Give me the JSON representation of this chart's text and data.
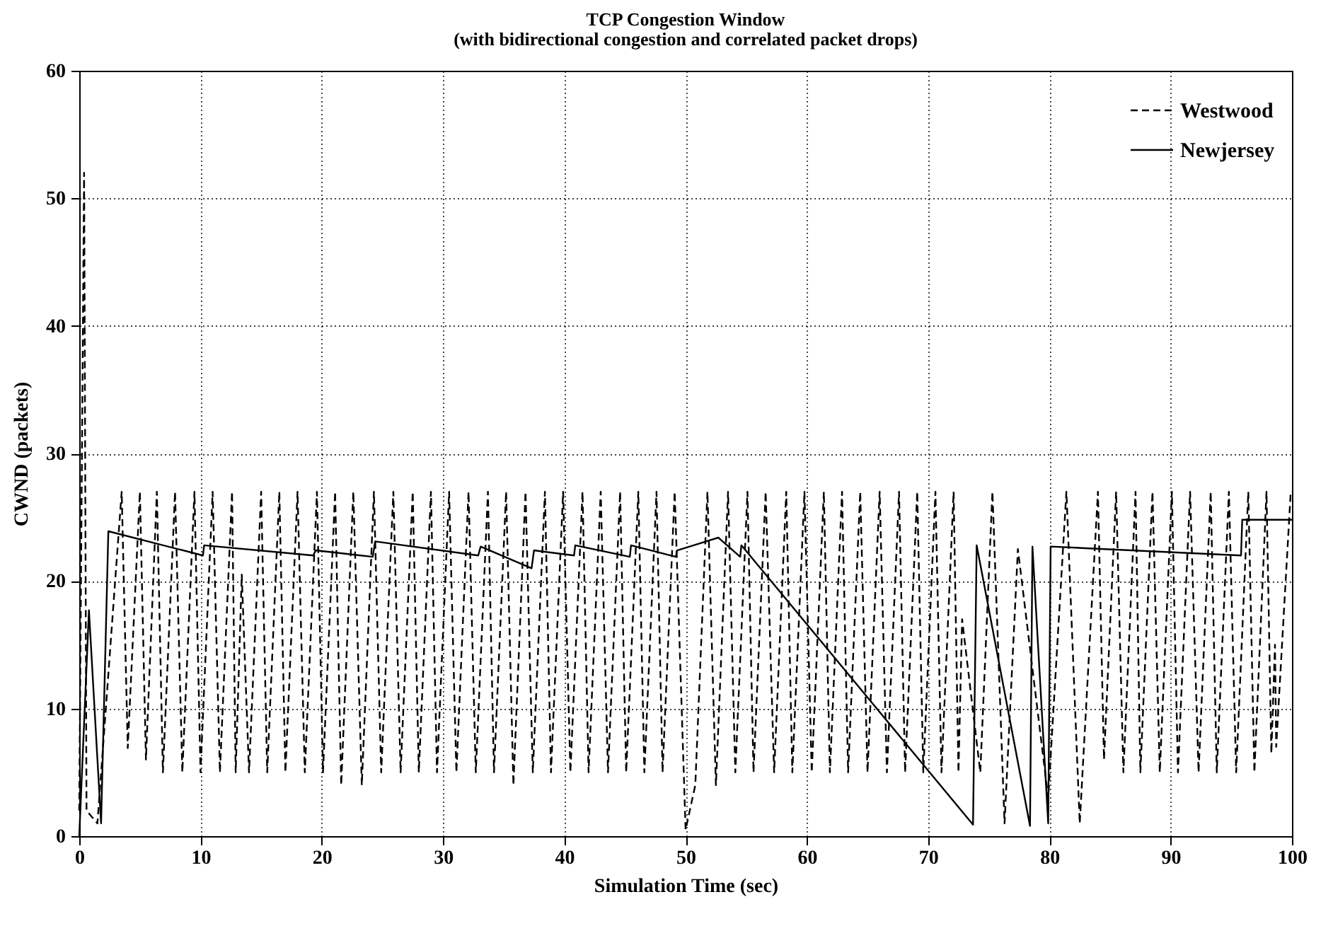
{
  "chart_data": {
    "type": "line",
    "title": "TCP Congestion Window",
    "subtitle": "(with bidirectional congestion and correlated packet drops)",
    "xlabel": "Simulation Time (sec)",
    "ylabel": "CWND (packets)",
    "xlim": [
      0,
      100
    ],
    "xticks": [
      0,
      10,
      20,
      30,
      40,
      50,
      60,
      70,
      80,
      90,
      100
    ],
    "ylim": [
      0,
      60
    ],
    "yticks": [
      0,
      10,
      20,
      30,
      40,
      50,
      60
    ],
    "grid": true,
    "legend": "top right",
    "marker": "none",
    "series": [
      {
        "name": "Westwood",
        "color": "#000000",
        "line_style": "dashed",
        "x": [
          0,
          0.4,
          0.6,
          1.5,
          3.5,
          4.0,
          5.0,
          5.5,
          6.4,
          6.9,
          7.9,
          8.5,
          9.5,
          10.0,
          11.0,
          11.6,
          12.6,
          12.9,
          13.4,
          14.0,
          15.0,
          15.5,
          16.5,
          17.0,
          18.0,
          18.6,
          19.6,
          20.1,
          21.1,
          21.6,
          22.6,
          23.3,
          24.3,
          24.9,
          25.9,
          26.5,
          27.5,
          28.0,
          29.0,
          29.5,
          30.5,
          31.1,
          32.1,
          32.7,
          33.7,
          34.2,
          35.2,
          35.8,
          36.8,
          37.4,
          38.4,
          38.9,
          39.9,
          40.5,
          41.5,
          42.0,
          43.0,
          43.6,
          44.6,
          45.1,
          46.1,
          46.6,
          47.6,
          48.1,
          49.1,
          50.0,
          50.8,
          51.8,
          52.5,
          53.5,
          54.1,
          55.1,
          55.6,
          56.6,
          57.3,
          58.3,
          58.8,
          59.8,
          60.4,
          61.4,
          61.9,
          62.9,
          63.4,
          64.4,
          65.0,
          66.0,
          66.6,
          67.6,
          68.1,
          69.1,
          69.6,
          70.6,
          71.1,
          72.1,
          72.5,
          72.8,
          74.3,
          75.3,
          76.3,
          77.4,
          79.9,
          81.4,
          82.5,
          84.0,
          84.5,
          85.5,
          86.1,
          87.1,
          87.5,
          88.5,
          89.1,
          90.1,
          90.6,
          91.6,
          92.3,
          93.3,
          93.8,
          94.8,
          95.4,
          96.4,
          96.9,
          97.9,
          98.3,
          98.6,
          98.7,
          99.9
        ],
        "values": [
          2,
          52,
          2,
          1,
          27,
          6.9,
          27,
          6,
          27,
          5,
          27,
          5,
          27,
          5,
          27,
          5,
          27,
          5,
          20.5,
          5,
          27,
          5,
          27,
          5,
          27,
          5,
          27,
          5,
          27,
          4,
          27,
          4,
          27,
          5,
          27,
          5,
          27,
          5,
          27,
          5,
          27,
          5,
          27,
          5,
          27,
          5,
          27,
          4,
          27,
          5,
          27,
          5,
          27,
          5,
          27,
          5,
          27,
          5,
          27,
          5,
          27,
          5,
          27,
          5,
          27,
          0.5,
          4,
          27,
          4,
          27,
          5,
          27,
          5,
          27,
          5,
          27,
          5,
          27,
          5,
          27,
          5,
          27,
          5,
          27,
          5,
          27,
          5,
          27,
          5,
          27,
          5,
          27,
          5,
          27,
          5,
          17,
          5,
          27,
          1,
          22.5,
          3,
          27,
          1,
          27,
          6,
          27,
          5,
          27,
          5,
          27,
          5,
          27,
          5,
          27,
          5,
          27,
          5,
          27,
          5,
          27,
          5,
          27,
          6.5,
          15,
          7,
          27
        ]
      },
      {
        "name": "Newjersey",
        "color": "#000000",
        "line_style": "solid",
        "x": [
          0,
          0.8,
          1.8,
          2.4,
          10.2,
          10.3,
          19.3,
          19.5,
          24.2,
          24.4,
          32.9,
          33.1,
          37.3,
          37.5,
          40.8,
          40.9,
          45.4,
          45.5,
          49.2,
          49.3,
          52.7,
          54.5,
          54.6,
          73.7,
          74.0,
          78.4,
          78.6,
          79.9,
          80.1,
          95.8,
          95.9,
          100
        ],
        "values": [
          0,
          17.7,
          1,
          23.9,
          22,
          22.8,
          22,
          22.4,
          21.9,
          23.1,
          22,
          22.7,
          21,
          22.4,
          22,
          22.8,
          21.9,
          22.8,
          21.9,
          22.4,
          23.4,
          21.9,
          22.8,
          0.9,
          22.8,
          0.8,
          22.7,
          1,
          22.7,
          22,
          24.8,
          24.8
        ]
      }
    ]
  }
}
